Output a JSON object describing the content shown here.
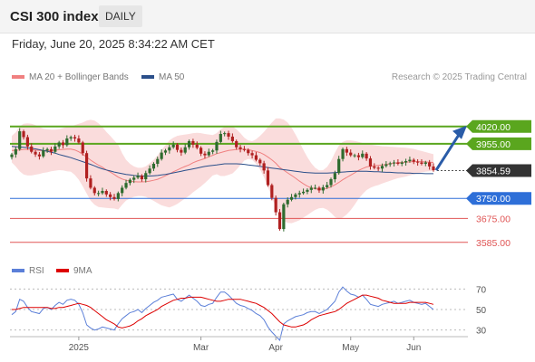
{
  "header": {
    "title": "CSI 300 index",
    "timeframe": "DAILY"
  },
  "timestamp": "Friday, June 20, 2025 8:34:22 AM CET",
  "legend": {
    "items": [
      {
        "label": "MA 20 + Bollinger Bands",
        "color": "#f08080"
      },
      {
        "label": "MA 50",
        "color": "#2b4f8a"
      }
    ],
    "credit": "Research © 2025 Trading Central"
  },
  "rsi_legend": {
    "items": [
      {
        "label": "RSI",
        "color": "#5b7fd8"
      },
      {
        "label": "9MA",
        "color": "#dd0000"
      }
    ]
  },
  "colors": {
    "resistance": "#5aa61e",
    "current": "#333333",
    "pivot": "#2e6fd8",
    "support": "#e05555",
    "bull_candle": "#2e6b2e",
    "bear_candle": "#b02020",
    "bollinger_fill": "#fadcdc",
    "arrow": "#2a5ca8"
  },
  "chart_data": [
    {
      "type": "candlestick",
      "title": "CSI 300 index",
      "x_ticks": [
        "2025",
        "Mar",
        "Apr",
        "May",
        "Jun"
      ],
      "ylim": [
        3530,
        4060
      ],
      "levels": [
        {
          "value": 4020.0,
          "label": "4020.00",
          "kind": "resistance"
        },
        {
          "value": 3955.0,
          "label": "3955.00",
          "kind": "resistance"
        },
        {
          "value": 3854.59,
          "label": "3854.59",
          "kind": "current"
        },
        {
          "value": 3750.0,
          "label": "3750.00",
          "kind": "pivot"
        },
        {
          "value": 3675.0,
          "label": "3675.00",
          "kind": "support"
        },
        {
          "value": 3585.0,
          "label": "3585.00",
          "kind": "support"
        }
      ],
      "close": [
        3915,
        3935,
        4002,
        3980,
        3945,
        3925,
        3915,
        3908,
        3930,
        3935,
        3925,
        3945,
        3960,
        3950,
        3975,
        3980,
        3975,
        3960,
        3920,
        3825,
        3790,
        3770,
        3770,
        3778,
        3765,
        3755,
        3748,
        3770,
        3790,
        3808,
        3820,
        3828,
        3835,
        3822,
        3845,
        3862,
        3880,
        3898,
        3922,
        3930,
        3942,
        3952,
        3932,
        3922,
        3942,
        3965,
        3952,
        3940,
        3918,
        3912,
        3925,
        3930,
        3962,
        3992,
        3995,
        3982,
        3965,
        3942,
        3935,
        3932,
        3920,
        3912,
        3895,
        3882,
        3855,
        3800,
        3752,
        3698,
        3635,
        3728,
        3745,
        3755,
        3765,
        3770,
        3775,
        3782,
        3790,
        3790,
        3780,
        3792,
        3800,
        3822,
        3845,
        3898,
        3935,
        3922,
        3912,
        3912,
        3905,
        3918,
        3900,
        3870,
        3865,
        3862,
        3872,
        3878,
        3882,
        3885,
        3880,
        3885,
        3890,
        3895,
        3888,
        3885,
        3880,
        3885,
        3870,
        3856
      ],
      "ma20": [
        3930,
        3930,
        3932,
        3934,
        3934,
        3933,
        3932,
        3930,
        3929,
        3929,
        3930,
        3931,
        3933,
        3934,
        3935,
        3935,
        3932,
        3925,
        3916,
        3905,
        3894,
        3884,
        3875,
        3867,
        3857,
        3849,
        3840,
        3830,
        3823,
        3818,
        3815,
        3813,
        3812,
        3812,
        3813,
        3815,
        3818,
        3822,
        3828,
        3835,
        3842,
        3850,
        3857,
        3864,
        3870,
        3876,
        3884,
        3890,
        3895,
        3900,
        3906,
        3912,
        3918,
        3922,
        3926,
        3930,
        3932,
        3934,
        3935,
        3935,
        3933,
        3930,
        3926,
        3922,
        3915,
        3905,
        3895,
        3882,
        3866,
        3856,
        3846,
        3836,
        3826,
        3815,
        3805,
        3796,
        3790,
        3786,
        3784,
        3785,
        3788,
        3793,
        3801,
        3810,
        3820,
        3829,
        3837,
        3846,
        3855,
        3862,
        3868,
        3871,
        3873,
        3874,
        3876,
        3878,
        3880,
        3882,
        3884,
        3885,
        3886,
        3887,
        3888,
        3888,
        3888,
        3887,
        3886,
        3885
      ],
      "bollinger_upper": [
        3985,
        3998,
        4020,
        4030,
        4032,
        4030,
        4025,
        4018,
        4012,
        4010,
        4008,
        4008,
        4010,
        4014,
        4018,
        4020,
        4025,
        4030,
        4035,
        4042,
        4045,
        4042,
        4032,
        4018,
        4000,
        3985,
        3968,
        3952,
        3920,
        3895,
        3880,
        3870,
        3865,
        3865,
        3870,
        3882,
        3895,
        3912,
        3932,
        3950,
        3968,
        3978,
        3985,
        3988,
        3990,
        3992,
        3995,
        3996,
        3995,
        3992,
        3990,
        3988,
        3995,
        4010,
        4018,
        4022,
        4020,
        4010,
        3995,
        3978,
        3968,
        3965,
        3972,
        3985,
        4000,
        4018,
        4035,
        4050,
        4050,
        4046,
        4035,
        4015,
        3990,
        3962,
        3932,
        3905,
        3882,
        3865,
        3855,
        3856,
        3868,
        3890,
        3922,
        3948,
        3962,
        3968,
        3968,
        3966,
        3962,
        3958,
        3955,
        3952,
        3950,
        3948,
        3946,
        3945,
        3944,
        3943,
        3942,
        3941,
        3940,
        3938,
        3936,
        3932,
        3928,
        3924,
        3920,
        3916
      ],
      "bollinger_lower": [
        3885,
        3870,
        3852,
        3840,
        3836,
        3836,
        3839,
        3842,
        3846,
        3848,
        3852,
        3854,
        3856,
        3855,
        3852,
        3850,
        3838,
        3820,
        3796,
        3768,
        3742,
        3726,
        3718,
        3716,
        3714,
        3713,
        3712,
        3708,
        3726,
        3742,
        3750,
        3756,
        3759,
        3759,
        3756,
        3748,
        3741,
        3732,
        3724,
        3720,
        3716,
        3722,
        3729,
        3740,
        3750,
        3760,
        3773,
        3784,
        3795,
        3808,
        3822,
        3836,
        3841,
        3834,
        3834,
        3838,
        3844,
        3858,
        3875,
        3892,
        3898,
        3895,
        3880,
        3859,
        3830,
        3792,
        3755,
        3714,
        3682,
        3666,
        3658,
        3657,
        3662,
        3668,
        3678,
        3687,
        3698,
        3707,
        3713,
        3714,
        3708,
        3696,
        3680,
        3672,
        3678,
        3690,
        3706,
        3726,
        3748,
        3766,
        3781,
        3790,
        3796,
        3800,
        3806,
        3811,
        3816,
        3821,
        3826,
        3829,
        3832,
        3836,
        3840,
        3844,
        3848,
        3850,
        3852,
        3854
      ],
      "ma50": [
        3945,
        3944,
        3943,
        3942,
        3940,
        3938,
        3936,
        3933,
        3930,
        3927,
        3923,
        3920,
        3915,
        3911,
        3907,
        3903,
        3898,
        3893,
        3888,
        3883,
        3878,
        3872,
        3866,
        3861,
        3857,
        3853,
        3849,
        3846,
        3843,
        3840,
        3838,
        3836,
        3835,
        3834,
        3834,
        3834,
        3835,
        3836,
        3838,
        3840,
        3843,
        3846,
        3849,
        3852,
        3855,
        3858,
        3861,
        3864,
        3867,
        3870,
        3872,
        3874,
        3876,
        3878,
        3880,
        3880,
        3880,
        3880,
        3879,
        3878,
        3876,
        3874,
        3872,
        3870,
        3868,
        3866,
        3864,
        3862,
        3860,
        3858,
        3856,
        3854,
        3852,
        3850,
        3848,
        3847,
        3846,
        3845,
        3845,
        3845,
        3845,
        3846,
        3847,
        3848,
        3849,
        3850,
        3851,
        3852,
        3852,
        3852,
        3852,
        3851,
        3850,
        3850,
        3849,
        3848,
        3848,
        3847,
        3846,
        3846,
        3845,
        3845,
        3844,
        3844,
        3844,
        3843,
        3843,
        3843
      ]
    },
    {
      "type": "line",
      "title": "RSI",
      "ylim": [
        20,
        80
      ],
      "y_ticks": [
        70,
        50,
        30
      ],
      "series": [
        {
          "name": "RSI",
          "values": [
            45,
            48,
            60,
            58,
            52,
            48,
            47,
            46,
            51,
            52,
            50,
            54,
            57,
            55,
            59,
            60,
            59,
            55,
            47,
            35,
            32,
            30,
            31,
            33,
            32,
            31,
            30,
            36,
            41,
            44,
            47,
            48,
            50,
            47,
            51,
            54,
            57,
            59,
            62,
            63,
            64,
            65,
            60,
            58,
            61,
            64,
            61,
            58,
            54,
            53,
            55,
            56,
            62,
            67,
            67,
            64,
            60,
            56,
            54,
            53,
            51,
            49,
            46,
            44,
            40,
            33,
            28,
            24,
            20,
            36,
            39,
            41,
            43,
            44,
            45,
            47,
            48,
            48,
            46,
            48,
            50,
            54,
            58,
            67,
            72,
            68,
            65,
            64,
            62,
            64,
            60,
            55,
            54,
            53,
            55,
            56,
            57,
            58,
            56,
            57,
            58,
            59,
            57,
            56,
            55,
            56,
            53,
            50
          ]
        },
        {
          "name": "9MA",
          "values": [
            50,
            50,
            51,
            52,
            52,
            52,
            52,
            52,
            52,
            52,
            51,
            51,
            52,
            52,
            53,
            54,
            55,
            56,
            55,
            54,
            52,
            49,
            46,
            43,
            40,
            38,
            36,
            33,
            32,
            33,
            34,
            36,
            39,
            41,
            44,
            46,
            48,
            50,
            53,
            55,
            57,
            59,
            60,
            61,
            61,
            62,
            62,
            62,
            62,
            61,
            60,
            59,
            58,
            58,
            59,
            60,
            60,
            60,
            60,
            59,
            58,
            57,
            56,
            54,
            52,
            49,
            46,
            42,
            38,
            35,
            34,
            33,
            33,
            34,
            35,
            37,
            40,
            42,
            44,
            45,
            46,
            47,
            48,
            50,
            53,
            56,
            58,
            60,
            62,
            64,
            64,
            63,
            62,
            61,
            59,
            58,
            57,
            56,
            56,
            56,
            56,
            57,
            57,
            57,
            57,
            57,
            56,
            55
          ]
        }
      ]
    }
  ]
}
